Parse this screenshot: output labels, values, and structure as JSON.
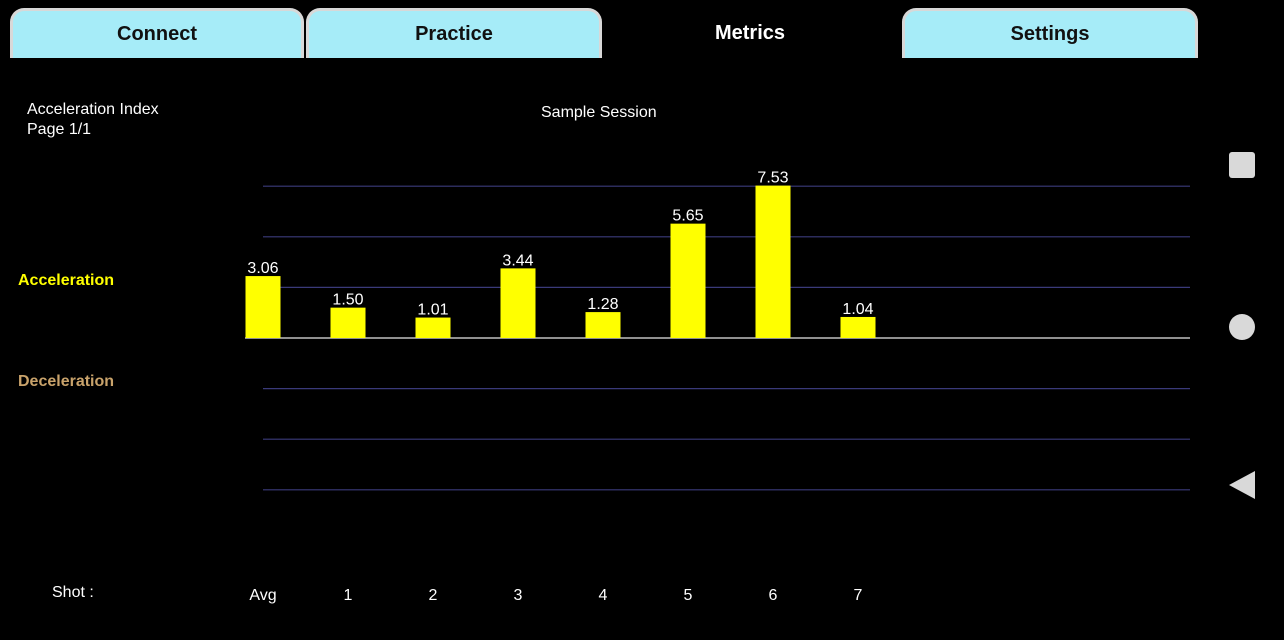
{
  "tabs": {
    "connect": "Connect",
    "practice": "Practice",
    "metrics": "Metrics",
    "settings": "Settings"
  },
  "header": {
    "metric_name": "Acceleration Index",
    "page": "Page 1/1",
    "session": "Sample Session"
  },
  "labels": {
    "acceleration": "Acceleration",
    "deceleration": "Deceleration",
    "shot": "Shot :"
  },
  "colors": {
    "bar": "#ffff00",
    "acceleration_label": "#ffff00",
    "deceleration_label": "#c9a36b",
    "gridline": "#3a3a7a",
    "baseline": "#bfbfbf",
    "tab_bg": "#a6ecf8"
  },
  "nav": {
    "recent": "square-icon",
    "home": "circle-icon",
    "back": "triangle-back-icon"
  },
  "chart_data": {
    "type": "bar",
    "categories": [
      "Avg",
      "1",
      "2",
      "3",
      "4",
      "5",
      "6",
      "7"
    ],
    "values": [
      3.06,
      1.5,
      1.01,
      3.44,
      1.28,
      5.65,
      7.53,
      1.04
    ],
    "value_labels": [
      "3.06",
      "1.50",
      "1.01",
      "3.44",
      "1.28",
      "5.65",
      "7.53",
      "1.04"
    ],
    "ylim": [
      -10,
      10
    ],
    "grid": true
  }
}
